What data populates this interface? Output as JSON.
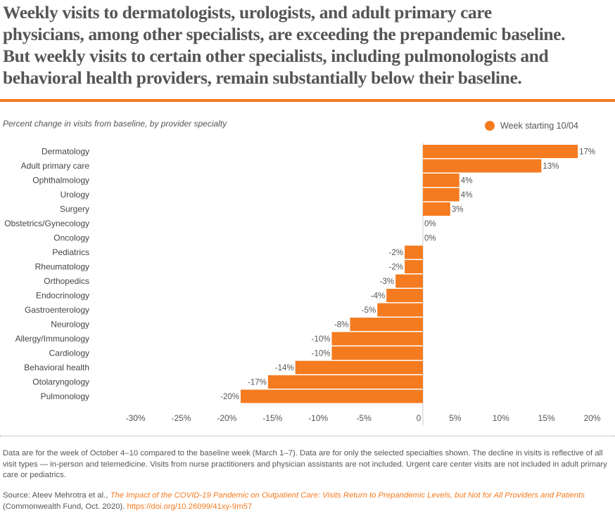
{
  "title_lines": [
    "Weekly visits to dermatologists, urologists, and adult primary care",
    "physicians, among other specialists, are exceeding the prepandemic baseline.",
    "But weekly visits to certain other specialists, including pulmonologists and",
    "behavioral health providers, remain substantially below their baseline."
  ],
  "colors": {
    "accent": "#f47b20",
    "text": "#555555"
  },
  "chart_data": {
    "type": "bar",
    "orientation": "horizontal",
    "subtitle": "Percent change in visits from baseline, by provider specialty",
    "legend_position": "top-right",
    "categories": [
      "Dermatology",
      "Adult primary care",
      "Ophthalmology",
      "Urology",
      "Surgery",
      "Obstetrics/Gynecology",
      "Oncology",
      "Pediatrics",
      "Rheumatology",
      "Orthopedics",
      "Endocrinology",
      "Gastroenterology",
      "Neurology",
      "Allergy/Immunology",
      "Cardiology",
      "Behavioral health",
      "Otolaryngology",
      "Pulmonology"
    ],
    "series": [
      {
        "name": "Week starting 10/04",
        "values": [
          17,
          13,
          4,
          4,
          3,
          0,
          0,
          -2,
          -2,
          -3,
          -4,
          -5,
          -8,
          -10,
          -10,
          -14,
          -17,
          -20
        ],
        "labels": [
          "17%",
          "13%",
          "4%",
          "4%",
          "3%",
          "0%",
          "0%",
          "-2%",
          "-2%",
          "-3%",
          "-4%",
          "-5%",
          "-8%",
          "-10%",
          "-10%",
          "-14%",
          "-17%",
          "-20%"
        ]
      }
    ],
    "xlim": [
      -30,
      20
    ],
    "x_ticks": [
      -30,
      -25,
      -20,
      -15,
      -10,
      -5,
      0,
      5,
      10,
      15,
      20
    ],
    "x_tick_labels": [
      "-30%",
      "-25%",
      "-20%",
      "-15%",
      "-10%",
      "-5%",
      "0",
      "5%",
      "10%",
      "15%",
      "20%"
    ],
    "grid": false
  },
  "notes": "Data are for the week of October 4–10 compared to the baseline week (March 1–7). Data are for only the selected specialties shown. The decline in visits is reflective of all visit types — in-person and telemedicine. Visits from nurse practitioners and physician assistants are not included. Urgent care center visits are not included in adult primary care or pediatrics.",
  "source": {
    "prefix": "Source: Ateev Mehrotra et al., ",
    "title": "The Impact of the COVID-19 Pandemic on Outpatient Care: Visits Return to Prepandemic Levels, but Not for All Providers and Patients",
    "middle": " (Commonwealth Fund, Oct. 2020). ",
    "doi": "https://doi.org/10.26099/41xy-9m57"
  }
}
